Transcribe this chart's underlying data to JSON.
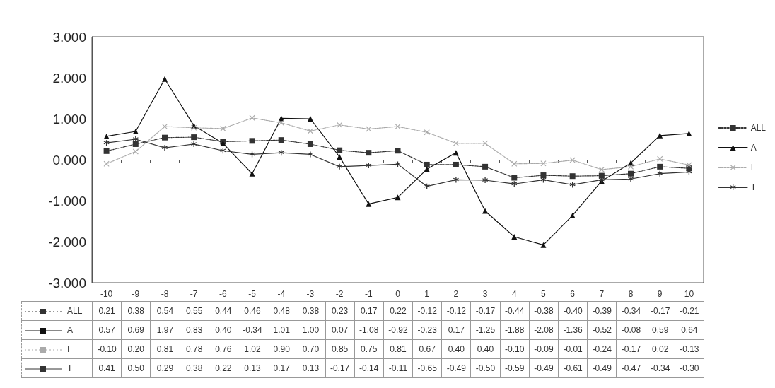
{
  "chart_data": {
    "type": "line",
    "categories": [
      "-10",
      "-9",
      "-8",
      "-7",
      "-6",
      "-5",
      "-4",
      "-3",
      "-2",
      "-1",
      "0",
      "1",
      "2",
      "3",
      "4",
      "5",
      "6",
      "7",
      "8",
      "9",
      "10"
    ],
    "series": [
      {
        "name": "ALL",
        "color": "#333333",
        "marker": "square",
        "line_style": "dotted",
        "values": [
          0.21,
          0.38,
          0.54,
          0.55,
          0.44,
          0.46,
          0.48,
          0.38,
          0.23,
          0.17,
          0.22,
          -0.12,
          -0.12,
          -0.17,
          -0.44,
          -0.38,
          -0.4,
          -0.39,
          -0.34,
          -0.17,
          -0.21
        ],
        "value_labels": [
          "0.21",
          "0.38",
          "0.54",
          "0.55",
          "0.44",
          "0.46",
          "0.48",
          "0.38",
          "0.23",
          "0.17",
          "0.22",
          "-0.12",
          "-0.12",
          "-0.17",
          "-0.44",
          "-0.38",
          "-0.40",
          "-0.39",
          "-0.34",
          "-0.17",
          "-0.21"
        ]
      },
      {
        "name": "A",
        "color": "#111111",
        "marker": "triangle",
        "line_style": "solid",
        "values": [
          0.57,
          0.69,
          1.97,
          0.83,
          0.4,
          -0.34,
          1.01,
          1.0,
          0.07,
          -1.08,
          -0.92,
          -0.23,
          0.17,
          -1.25,
          -1.88,
          -2.08,
          -1.36,
          -0.52,
          -0.08,
          0.59,
          0.64
        ],
        "value_labels": [
          "0.57",
          "0.69",
          "1.97",
          "0.83",
          "0.40",
          "-0.34",
          "1.01",
          "1.00",
          "0.07",
          "-1.08",
          "-0.92",
          "-0.23",
          "0.17",
          "-1.25",
          "-1.88",
          "-2.08",
          "-1.36",
          "-0.52",
          "-0.08",
          "0.59",
          "0.64"
        ]
      },
      {
        "name": "I",
        "color": "#aaaaaa",
        "marker": "cross",
        "line_style": "dotted",
        "values": [
          -0.1,
          0.2,
          0.81,
          0.78,
          0.76,
          1.02,
          0.9,
          0.7,
          0.85,
          0.75,
          0.81,
          0.67,
          0.4,
          0.4,
          -0.1,
          -0.09,
          -0.01,
          -0.24,
          -0.17,
          0.02,
          -0.13
        ],
        "value_labels": [
          "-0.10",
          "0.20",
          "0.81",
          "0.78",
          "0.76",
          "1.02",
          "0.90",
          "0.70",
          "0.85",
          "0.75",
          "0.81",
          "0.67",
          "0.40",
          "0.40",
          "-0.10",
          "-0.09",
          "-0.01",
          "-0.24",
          "-0.17",
          "0.02",
          "-0.13"
        ]
      },
      {
        "name": "T",
        "color": "#333333",
        "marker": "star",
        "line_style": "solid",
        "values": [
          0.41,
          0.5,
          0.29,
          0.38,
          0.22,
          0.13,
          0.17,
          0.13,
          -0.17,
          -0.14,
          -0.11,
          -0.65,
          -0.49,
          -0.5,
          -0.59,
          -0.49,
          -0.61,
          -0.49,
          -0.47,
          -0.34,
          -0.3
        ],
        "value_labels": [
          "0.41",
          "0.50",
          "0.29",
          "0.38",
          "0.22",
          "0.13",
          "0.17",
          "0.13",
          "-0.17",
          "-0.14",
          "-0.11",
          "-0.65",
          "-0.49",
          "-0.50",
          "-0.59",
          "-0.49",
          "-0.61",
          "-0.49",
          "-0.47",
          "-0.34",
          "-0.30"
        ]
      }
    ],
    "ylim": [
      -3,
      3
    ],
    "yticks": [
      {
        "value": -3,
        "label": "-3.000"
      },
      {
        "value": -2,
        "label": "-2.000"
      },
      {
        "value": -1,
        "label": "-1.000"
      },
      {
        "value": 0,
        "label": "0.000"
      },
      {
        "value": 1,
        "label": "1.000"
      },
      {
        "value": 2,
        "label": "2.000"
      },
      {
        "value": 3,
        "label": "3.000"
      }
    ],
    "grid": "y",
    "legend": "right"
  }
}
